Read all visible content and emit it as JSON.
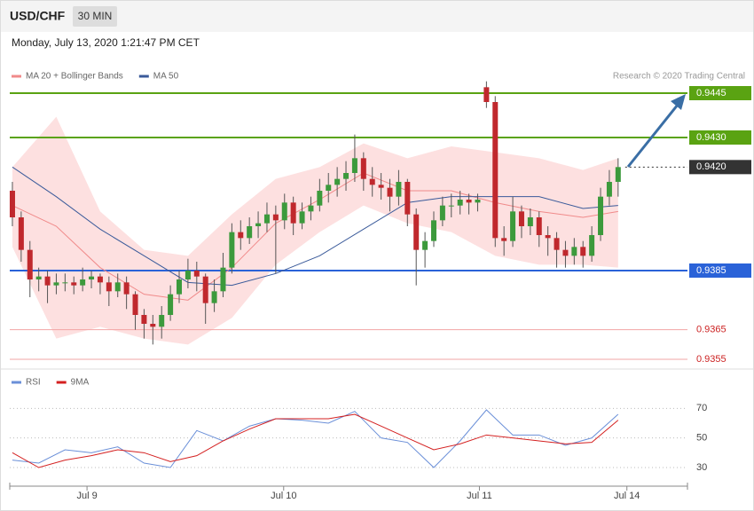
{
  "header": {
    "symbol": "USD/CHF",
    "interval": "30 MIN",
    "timestamp": "Monday, July 13, 2020 1:21:47 PM CET"
  },
  "chart_data": [
    {
      "type": "candlestick",
      "source": "Research © 2020 Trading Central",
      "xlim": [
        -0.3,
        76.9
      ],
      "ylim": [
        0.9352,
        0.9466
      ],
      "up_color": "#3c9a3c",
      "down_color": "#c0282d",
      "candles": [
        [
          0.9412,
          0.9415,
          0.94,
          0.9403
        ],
        [
          0.9403,
          0.9405,
          0.9388,
          0.9392
        ],
        [
          0.9392,
          0.9395,
          0.9376,
          0.9382
        ],
        [
          0.9382,
          0.9386,
          0.9378,
          0.9383
        ],
        [
          0.9383,
          0.9385,
          0.9374,
          0.938
        ],
        [
          0.938,
          0.9384,
          0.9377,
          0.9381
        ],
        [
          0.9381,
          0.9384,
          0.9378,
          0.9381
        ],
        [
          0.9381,
          0.9383,
          0.9377,
          0.938
        ],
        [
          0.938,
          0.9386,
          0.9378,
          0.9382
        ],
        [
          0.9382,
          0.9385,
          0.9379,
          0.9383
        ],
        [
          0.9383,
          0.9384,
          0.9377,
          0.9381
        ],
        [
          0.9381,
          0.9383,
          0.9373,
          0.9378
        ],
        [
          0.9378,
          0.9384,
          0.9376,
          0.9381
        ],
        [
          0.9381,
          0.9383,
          0.9372,
          0.9377
        ],
        [
          0.9377,
          0.9378,
          0.9365,
          0.937
        ],
        [
          0.937,
          0.9372,
          0.9362,
          0.9367
        ],
        [
          0.9367,
          0.937,
          0.936,
          0.9366
        ],
        [
          0.9366,
          0.9373,
          0.9362,
          0.937
        ],
        [
          0.937,
          0.938,
          0.9368,
          0.9377
        ],
        [
          0.9377,
          0.9385,
          0.9374,
          0.9382
        ],
        [
          0.9382,
          0.9389,
          0.9379,
          0.9385
        ],
        [
          0.9385,
          0.9388,
          0.9378,
          0.9383
        ],
        [
          0.9383,
          0.9384,
          0.9367,
          0.9374
        ],
        [
          0.9374,
          0.9382,
          0.9371,
          0.9378
        ],
        [
          0.9378,
          0.9391,
          0.9376,
          0.9386
        ],
        [
          0.9386,
          0.9401,
          0.9384,
          0.9398
        ],
        [
          0.9398,
          0.9402,
          0.9392,
          0.9396
        ],
        [
          0.9396,
          0.9403,
          0.9394,
          0.94
        ],
        [
          0.94,
          0.9405,
          0.9396,
          0.9401
        ],
        [
          0.9401,
          0.9408,
          0.9398,
          0.9404
        ],
        [
          0.9404,
          0.9407,
          0.9384,
          0.9402
        ],
        [
          0.9402,
          0.9411,
          0.9399,
          0.9408
        ],
        [
          0.9408,
          0.941,
          0.9397,
          0.9401
        ],
        [
          0.9401,
          0.9408,
          0.9399,
          0.9405
        ],
        [
          0.9405,
          0.941,
          0.9402,
          0.9407
        ],
        [
          0.9407,
          0.9416,
          0.9405,
          0.9412
        ],
        [
          0.9412,
          0.9418,
          0.9408,
          0.9414
        ],
        [
          0.9414,
          0.942,
          0.941,
          0.9416
        ],
        [
          0.9416,
          0.9422,
          0.9412,
          0.9418
        ],
        [
          0.9418,
          0.9431,
          0.9415,
          0.9423
        ],
        [
          0.9423,
          0.9425,
          0.9412,
          0.9416
        ],
        [
          0.9416,
          0.942,
          0.941,
          0.9414
        ],
        [
          0.9414,
          0.9418,
          0.9409,
          0.9413
        ],
        [
          0.9413,
          0.9416,
          0.9405,
          0.941
        ],
        [
          0.941,
          0.9419,
          0.9407,
          0.9415
        ],
        [
          0.9415,
          0.9416,
          0.94,
          0.9404
        ],
        [
          0.9404,
          0.9406,
          0.938,
          0.9392
        ],
        [
          0.9392,
          0.9398,
          0.9386,
          0.9395
        ],
        [
          0.9395,
          0.9405,
          0.9393,
          0.9402
        ],
        [
          0.9402,
          0.941,
          0.94,
          0.9407
        ],
        [
          0.9407,
          0.9411,
          0.9403,
          0.9407
        ],
        [
          0.9407,
          0.9412,
          0.9404,
          0.9409
        ],
        [
          0.9409,
          0.9411,
          0.9404,
          0.9408
        ],
        [
          0.9408,
          0.9411,
          0.9405,
          0.9409
        ],
        [
          0.9447,
          0.9449,
          0.944,
          0.9442
        ],
        [
          0.9442,
          0.9444,
          0.9393,
          0.9396
        ],
        [
          0.9396,
          0.94,
          0.939,
          0.9395
        ],
        [
          0.9395,
          0.941,
          0.9393,
          0.9405
        ],
        [
          0.9405,
          0.9407,
          0.9396,
          0.94
        ],
        [
          0.94,
          0.9406,
          0.9397,
          0.9403
        ],
        [
          0.9403,
          0.9405,
          0.9393,
          0.9397
        ],
        [
          0.9397,
          0.94,
          0.939,
          0.9396
        ],
        [
          0.9396,
          0.9398,
          0.9386,
          0.9392
        ],
        [
          0.9392,
          0.9395,
          0.9386,
          0.939
        ],
        [
          0.939,
          0.9396,
          0.9387,
          0.9393
        ],
        [
          0.9393,
          0.9395,
          0.9386,
          0.939
        ],
        [
          0.939,
          0.94,
          0.9388,
          0.9397
        ],
        [
          0.9397,
          0.9413,
          0.9395,
          0.941
        ],
        [
          0.941,
          0.9419,
          0.9407,
          0.9415
        ],
        [
          0.9415,
          0.9423,
          0.941,
          0.942
        ]
      ],
      "series": [
        {
          "name": "MA 20 + Bollinger Bands",
          "color": "#f08a8a",
          "band_color": "#fde0e0",
          "x": [
            0,
            5,
            10,
            15,
            20,
            25,
            30,
            35,
            40,
            45,
            50,
            55,
            60,
            65,
            69
          ],
          "values": [
            0.9407,
            0.94,
            0.9386,
            0.9377,
            0.9375,
            0.9386,
            0.9401,
            0.9409,
            0.9418,
            0.9412,
            0.9412,
            0.9408,
            0.9405,
            0.9403,
            0.9405
          ],
          "upper": [
            0.942,
            0.9437,
            0.9405,
            0.9392,
            0.939,
            0.9404,
            0.9416,
            0.942,
            0.9428,
            0.9423,
            0.9427,
            0.9425,
            0.9423,
            0.9419,
            0.9423
          ],
          "lower": [
            0.9393,
            0.9362,
            0.9366,
            0.9362,
            0.936,
            0.9369,
            0.9387,
            0.9398,
            0.9407,
            0.9401,
            0.9398,
            0.939,
            0.9387,
            0.9387,
            0.9386
          ]
        },
        {
          "name": "MA 50",
          "color": "#3a5a9a",
          "x": [
            0,
            5,
            10,
            15,
            20,
            25,
            30,
            35,
            40,
            45,
            50,
            55,
            60,
            65,
            69
          ],
          "values": [
            0.942,
            0.941,
            0.9399,
            0.939,
            0.9381,
            0.938,
            0.9384,
            0.939,
            0.9399,
            0.9408,
            0.941,
            0.941,
            0.941,
            0.9406,
            0.9407
          ]
        }
      ],
      "levels": [
        {
          "value": 0.9445,
          "color": "#5aa312",
          "boxed": true,
          "dotted": false
        },
        {
          "value": 0.943,
          "label": "0.9430",
          "color": "#5aa312",
          "boxed": true,
          "dotted": false
        },
        {
          "value": 0.942,
          "label": "0.9420",
          "color": "#333333",
          "boxed": true,
          "dotted": true
        },
        {
          "value": 0.9385,
          "color": "#2a62d8",
          "boxed": true,
          "dotted": false
        },
        {
          "value": 0.9365,
          "color": "#cc2222",
          "boxed": false,
          "dotted": false
        },
        {
          "value": 0.9355,
          "color": "#cc2222",
          "boxed": false,
          "dotted": false
        }
      ]
    },
    {
      "type": "line",
      "xlim": [
        -0.3,
        76.9
      ],
      "ylim": [
        19.2,
        94.2
      ],
      "yticks": [
        30,
        50,
        70
      ],
      "grid": true,
      "xticks": [
        {
          "value": 8.5,
          "label": "Jul 9"
        },
        {
          "value": 30.9,
          "label": "Jul 10"
        },
        {
          "value": 53.2,
          "label": "Jul 11"
        },
        {
          "value": 70,
          "label": "Jul 14"
        }
      ],
      "series": [
        {
          "name": "RSI",
          "color": "#6a8fd8",
          "x": [
            0,
            3,
            6,
            9,
            12,
            15,
            18,
            21,
            24,
            27,
            30,
            33,
            36,
            39,
            42,
            45,
            48,
            51,
            54,
            57,
            60,
            63,
            66,
            69
          ],
          "values": [
            35,
            33,
            42,
            40,
            44,
            33,
            30,
            55,
            48,
            58,
            63,
            62,
            60,
            68,
            50,
            47,
            30,
            48,
            69,
            52,
            52,
            45,
            50,
            66
          ]
        },
        {
          "name": "9MA",
          "color": "#d42020",
          "x": [
            0,
            3,
            6,
            9,
            12,
            15,
            18,
            21,
            24,
            27,
            30,
            33,
            36,
            39,
            42,
            45,
            48,
            51,
            54,
            57,
            60,
            63,
            66,
            69
          ],
          "values": [
            40,
            30,
            35,
            38,
            42,
            40,
            34,
            38,
            48,
            56,
            63,
            63,
            63,
            66,
            58,
            50,
            42,
            46,
            52,
            50,
            48,
            46,
            47,
            62
          ]
        }
      ]
    }
  ]
}
